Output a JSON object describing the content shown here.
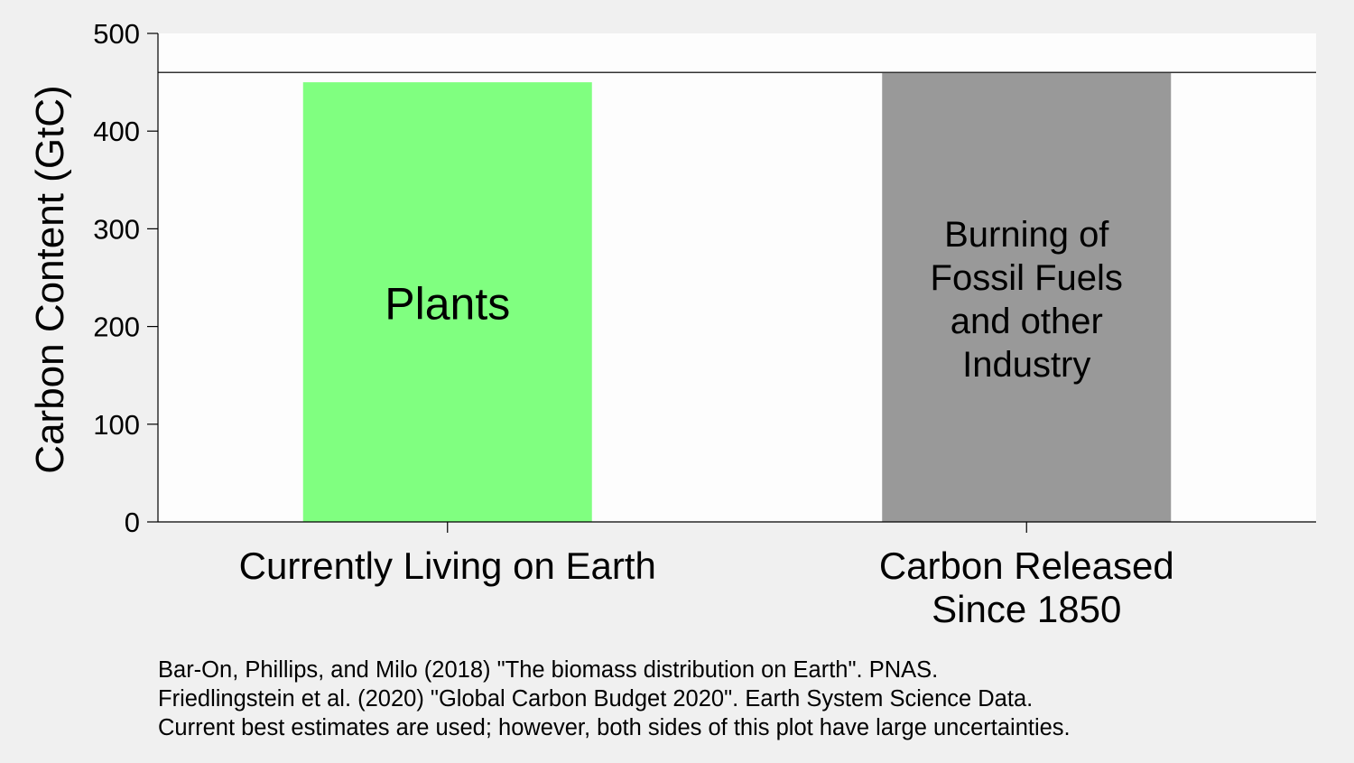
{
  "chart_data": {
    "type": "bar",
    "ylabel": "Carbon Content (GtC)",
    "xlabel": "",
    "ylim": [
      0,
      500
    ],
    "yticks": [
      0,
      100,
      200,
      300,
      400,
      500
    ],
    "categories": [
      "Currently Living on Earth",
      "Carbon Released Since 1850"
    ],
    "category_label_lines": [
      [
        "Currently Living on Earth"
      ],
      [
        "Carbon Released",
        "Since 1850"
      ]
    ],
    "values": [
      450,
      460
    ],
    "bar_labels": [
      [
        "Plants"
      ],
      [
        "Burning of",
        "Fossil Fuels",
        "and other",
        "Industry"
      ]
    ],
    "bar_colors": [
      "#80ff80",
      "#999999"
    ],
    "reference_line": 460,
    "grid": false
  },
  "footnotes": [
    "Bar-On, Phillips, and Milo (2018) \"The biomass distribution on Earth\".  PNAS.",
    "Friedlingstein et al. (2020) \"Global Carbon Budget 2020\".  Earth System Science Data.",
    "Current best estimates are used; however, both sides of this plot have large uncertainties."
  ]
}
